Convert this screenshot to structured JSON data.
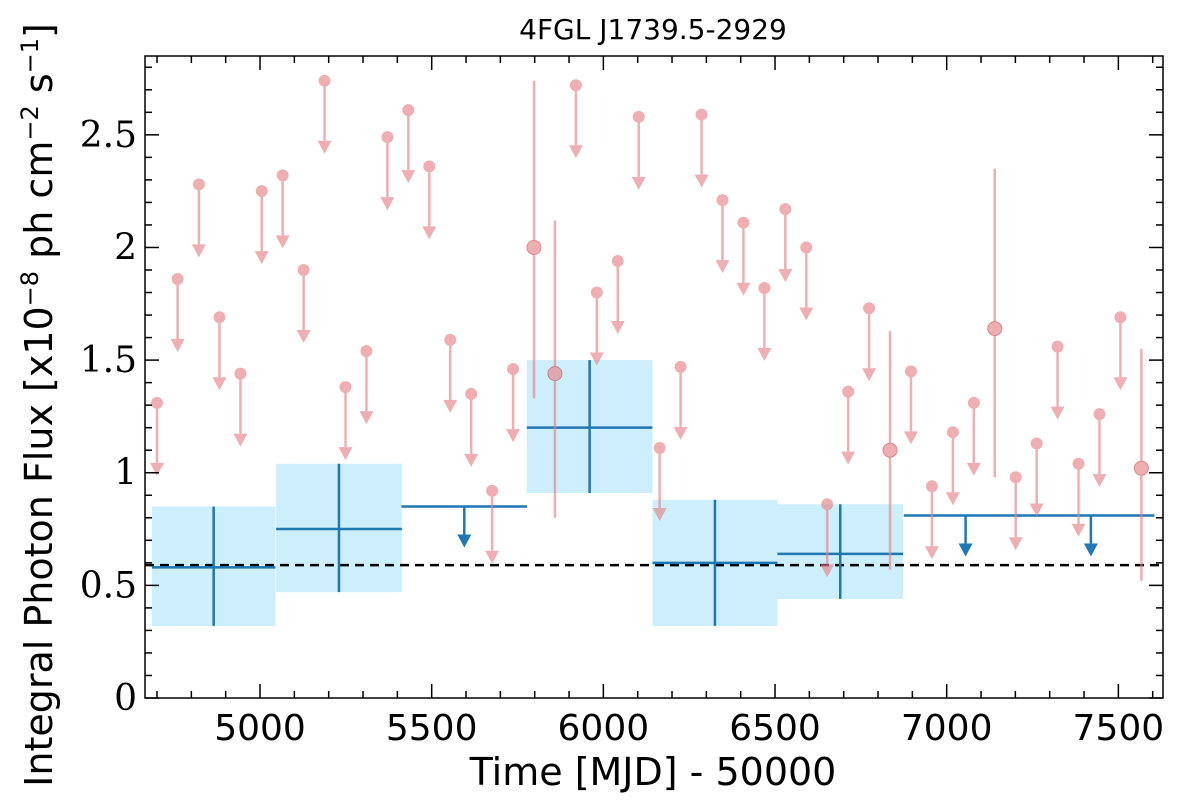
{
  "chart_data": {
    "type": "scatter",
    "title": "4FGL J1739.5-2929",
    "xlabel": "Time [MJD] - 50000",
    "ylabel_main": "Integral Photon Flux [x10",
    "ylabel_exp1": "−8",
    "ylabel_mid": " ph cm",
    "ylabel_exp2": "−2",
    "ylabel_mid2": " s",
    "ylabel_exp3": "−1",
    "ylabel_end": "]",
    "xlim": [
      4665,
      7630
    ],
    "ylim": [
      0,
      2.85
    ],
    "xticks": [
      5000,
      5500,
      6000,
      6500,
      7000,
      7500
    ],
    "yticks": [
      0,
      0.5,
      1,
      1.5,
      2,
      2.5
    ],
    "ytick_labels": [
      "0",
      "0.5",
      "1",
      "1.5",
      "2",
      "2.5"
    ],
    "mean_flux": 0.59,
    "colors": {
      "short_bins": "#e8848a",
      "long_bins": "#1f77b4",
      "error_band": "#cdeefb",
      "mean_line": "#000000"
    },
    "long_bin_detections": [
      {
        "x": 4865,
        "xerr": 180,
        "y": 0.58,
        "ylo": 0.32,
        "yhi": 0.85
      },
      {
        "x": 5230,
        "xerr": 183,
        "y": 0.75,
        "ylo": 0.47,
        "yhi": 1.04
      },
      {
        "x": 5960,
        "xerr": 183,
        "y": 1.2,
        "ylo": 0.91,
        "yhi": 1.5
      },
      {
        "x": 6325,
        "xerr": 182,
        "y": 0.6,
        "ylo": 0.32,
        "yhi": 0.88
      },
      {
        "x": 6690,
        "xerr": 183,
        "y": 0.64,
        "ylo": 0.44,
        "yhi": 0.86
      }
    ],
    "long_bin_upper_limits": [
      {
        "x": 5595,
        "xerr": 183,
        "y": 0.85
      },
      {
        "x": 7055,
        "xerr": 180,
        "y": 0.81
      },
      {
        "x": 7420,
        "xerr": 185,
        "y": 0.81
      }
    ],
    "short_bin_upper_limits": [
      {
        "x": 4700,
        "y": 1.31
      },
      {
        "x": 4760,
        "y": 1.86
      },
      {
        "x": 4822,
        "y": 2.28
      },
      {
        "x": 4882,
        "y": 1.69
      },
      {
        "x": 4943,
        "y": 1.44
      },
      {
        "x": 5005,
        "y": 2.25
      },
      {
        "x": 5066,
        "y": 2.32
      },
      {
        "x": 5127,
        "y": 1.9
      },
      {
        "x": 5188,
        "y": 2.74
      },
      {
        "x": 5249,
        "y": 1.38
      },
      {
        "x": 5310,
        "y": 1.54
      },
      {
        "x": 5371,
        "y": 2.49
      },
      {
        "x": 5432,
        "y": 2.61
      },
      {
        "x": 5493,
        "y": 2.36
      },
      {
        "x": 5554,
        "y": 1.59
      },
      {
        "x": 5615,
        "y": 1.35
      },
      {
        "x": 5676,
        "y": 0.92
      },
      {
        "x": 5737,
        "y": 1.46
      },
      {
        "x": 5920,
        "y": 2.72
      },
      {
        "x": 5981,
        "y": 1.8
      },
      {
        "x": 6042,
        "y": 1.94
      },
      {
        "x": 6103,
        "y": 2.58
      },
      {
        "x": 6164,
        "y": 1.11
      },
      {
        "x": 6225,
        "y": 1.47
      },
      {
        "x": 6286,
        "y": 2.59
      },
      {
        "x": 6347,
        "y": 2.21
      },
      {
        "x": 6408,
        "y": 2.11
      },
      {
        "x": 6469,
        "y": 1.82
      },
      {
        "x": 6530,
        "y": 2.17
      },
      {
        "x": 6591,
        "y": 2.0
      },
      {
        "x": 6652,
        "y": 0.86
      },
      {
        "x": 6713,
        "y": 1.36
      },
      {
        "x": 6774,
        "y": 1.73
      },
      {
        "x": 6896,
        "y": 1.45
      },
      {
        "x": 6957,
        "y": 0.94
      },
      {
        "x": 7018,
        "y": 1.18
      },
      {
        "x": 7079,
        "y": 1.31
      },
      {
        "x": 7201,
        "y": 0.98
      },
      {
        "x": 7262,
        "y": 1.13
      },
      {
        "x": 7323,
        "y": 1.56
      },
      {
        "x": 7384,
        "y": 1.04
      },
      {
        "x": 7445,
        "y": 1.26
      },
      {
        "x": 7506,
        "y": 1.69
      }
    ],
    "short_bin_detections": [
      {
        "x": 5798,
        "y": 2.0,
        "ylo": 1.33,
        "yhi": 2.74
      },
      {
        "x": 5859,
        "y": 1.44,
        "ylo": 0.8,
        "yhi": 2.12
      },
      {
        "x": 6835,
        "y": 1.1,
        "ylo": 0.57,
        "yhi": 1.63
      },
      {
        "x": 7140,
        "y": 1.64,
        "ylo": 0.98,
        "yhi": 2.35
      },
      {
        "x": 7567,
        "y": 1.02,
        "ylo": 0.52,
        "yhi": 1.55
      }
    ]
  }
}
